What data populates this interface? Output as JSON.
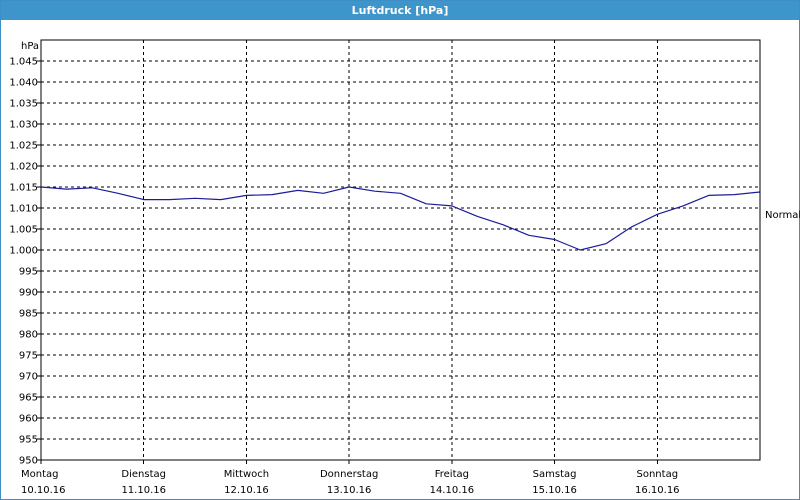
{
  "window": {
    "title": "Luftdruck [hPa]"
  },
  "colors": {
    "titlebar": "#3d95cc",
    "line": "#1c1c9a",
    "grid": "#000000"
  },
  "chart_data": {
    "type": "line",
    "title": "Luftdruck [hPa]",
    "ylabel": "hPa",
    "ylim": [
      950,
      1050
    ],
    "yticks": [
      950,
      955,
      960,
      965,
      970,
      975,
      980,
      985,
      990,
      995,
      1000,
      1005,
      1010,
      1015,
      1020,
      1025,
      1030,
      1035,
      1040,
      1045
    ],
    "ytick_labels": [
      "950",
      "955",
      "960",
      "965",
      "970",
      "975",
      "980",
      "985",
      "990",
      "995",
      "1.000",
      "1.005",
      "1.010",
      "1.015",
      "1.020",
      "1.025",
      "1.030",
      "1.035",
      "1.040",
      "1.045"
    ],
    "xlim": [
      "2016-10-10T00:00",
      "2016-10-17T00:00"
    ],
    "x_tick_days": [
      {
        "day": "Montag",
        "date": "10.10.16"
      },
      {
        "day": "Dienstag",
        "date": "11.10.16"
      },
      {
        "day": "Mittwoch",
        "date": "12.10.16"
      },
      {
        "day": "Donnerstag",
        "date": "13.10.16"
      },
      {
        "day": "Freitag",
        "date": "14.10.16"
      },
      {
        "day": "Samstag",
        "date": "15.10.16"
      },
      {
        "day": "Sonntag",
        "date": "16.10.16"
      }
    ],
    "reference_line": {
      "label": "Normal",
      "value": 1008.5
    },
    "grid": true,
    "series": [
      {
        "x": [
          "2016-10-10T00:00",
          "2016-10-10T06:00",
          "2016-10-10T12:00",
          "2016-10-10T18:00",
          "2016-10-11T00:00",
          "2016-10-11T06:00",
          "2016-10-11T12:00",
          "2016-10-11T18:00",
          "2016-10-12T00:00",
          "2016-10-12T06:00",
          "2016-10-12T12:00",
          "2016-10-12T18:00",
          "2016-10-13T00:00",
          "2016-10-13T06:00",
          "2016-10-13T12:00",
          "2016-10-13T18:00",
          "2016-10-14T00:00",
          "2016-10-14T06:00",
          "2016-10-14T12:00",
          "2016-10-14T18:00",
          "2016-10-15T00:00",
          "2016-10-15T06:00",
          "2016-10-15T12:00",
          "2016-10-15T18:00",
          "2016-10-16T00:00",
          "2016-10-16T06:00",
          "2016-10-16T12:00",
          "2016-10-16T18:00",
          "2016-10-17T00:00"
        ],
        "values": [
          1015.0,
          1014.5,
          1014.8,
          1013.5,
          1012.0,
          1012.0,
          1012.3,
          1012.0,
          1013.0,
          1013.2,
          1014.2,
          1013.5,
          1015.0,
          1014.0,
          1013.5,
          1011.0,
          1010.5,
          1008.0,
          1006.0,
          1003.5,
          1002.5,
          1000.0,
          1001.5,
          1005.5,
          1008.5,
          1010.5,
          1013.0,
          1013.2,
          1013.8
        ]
      }
    ]
  }
}
